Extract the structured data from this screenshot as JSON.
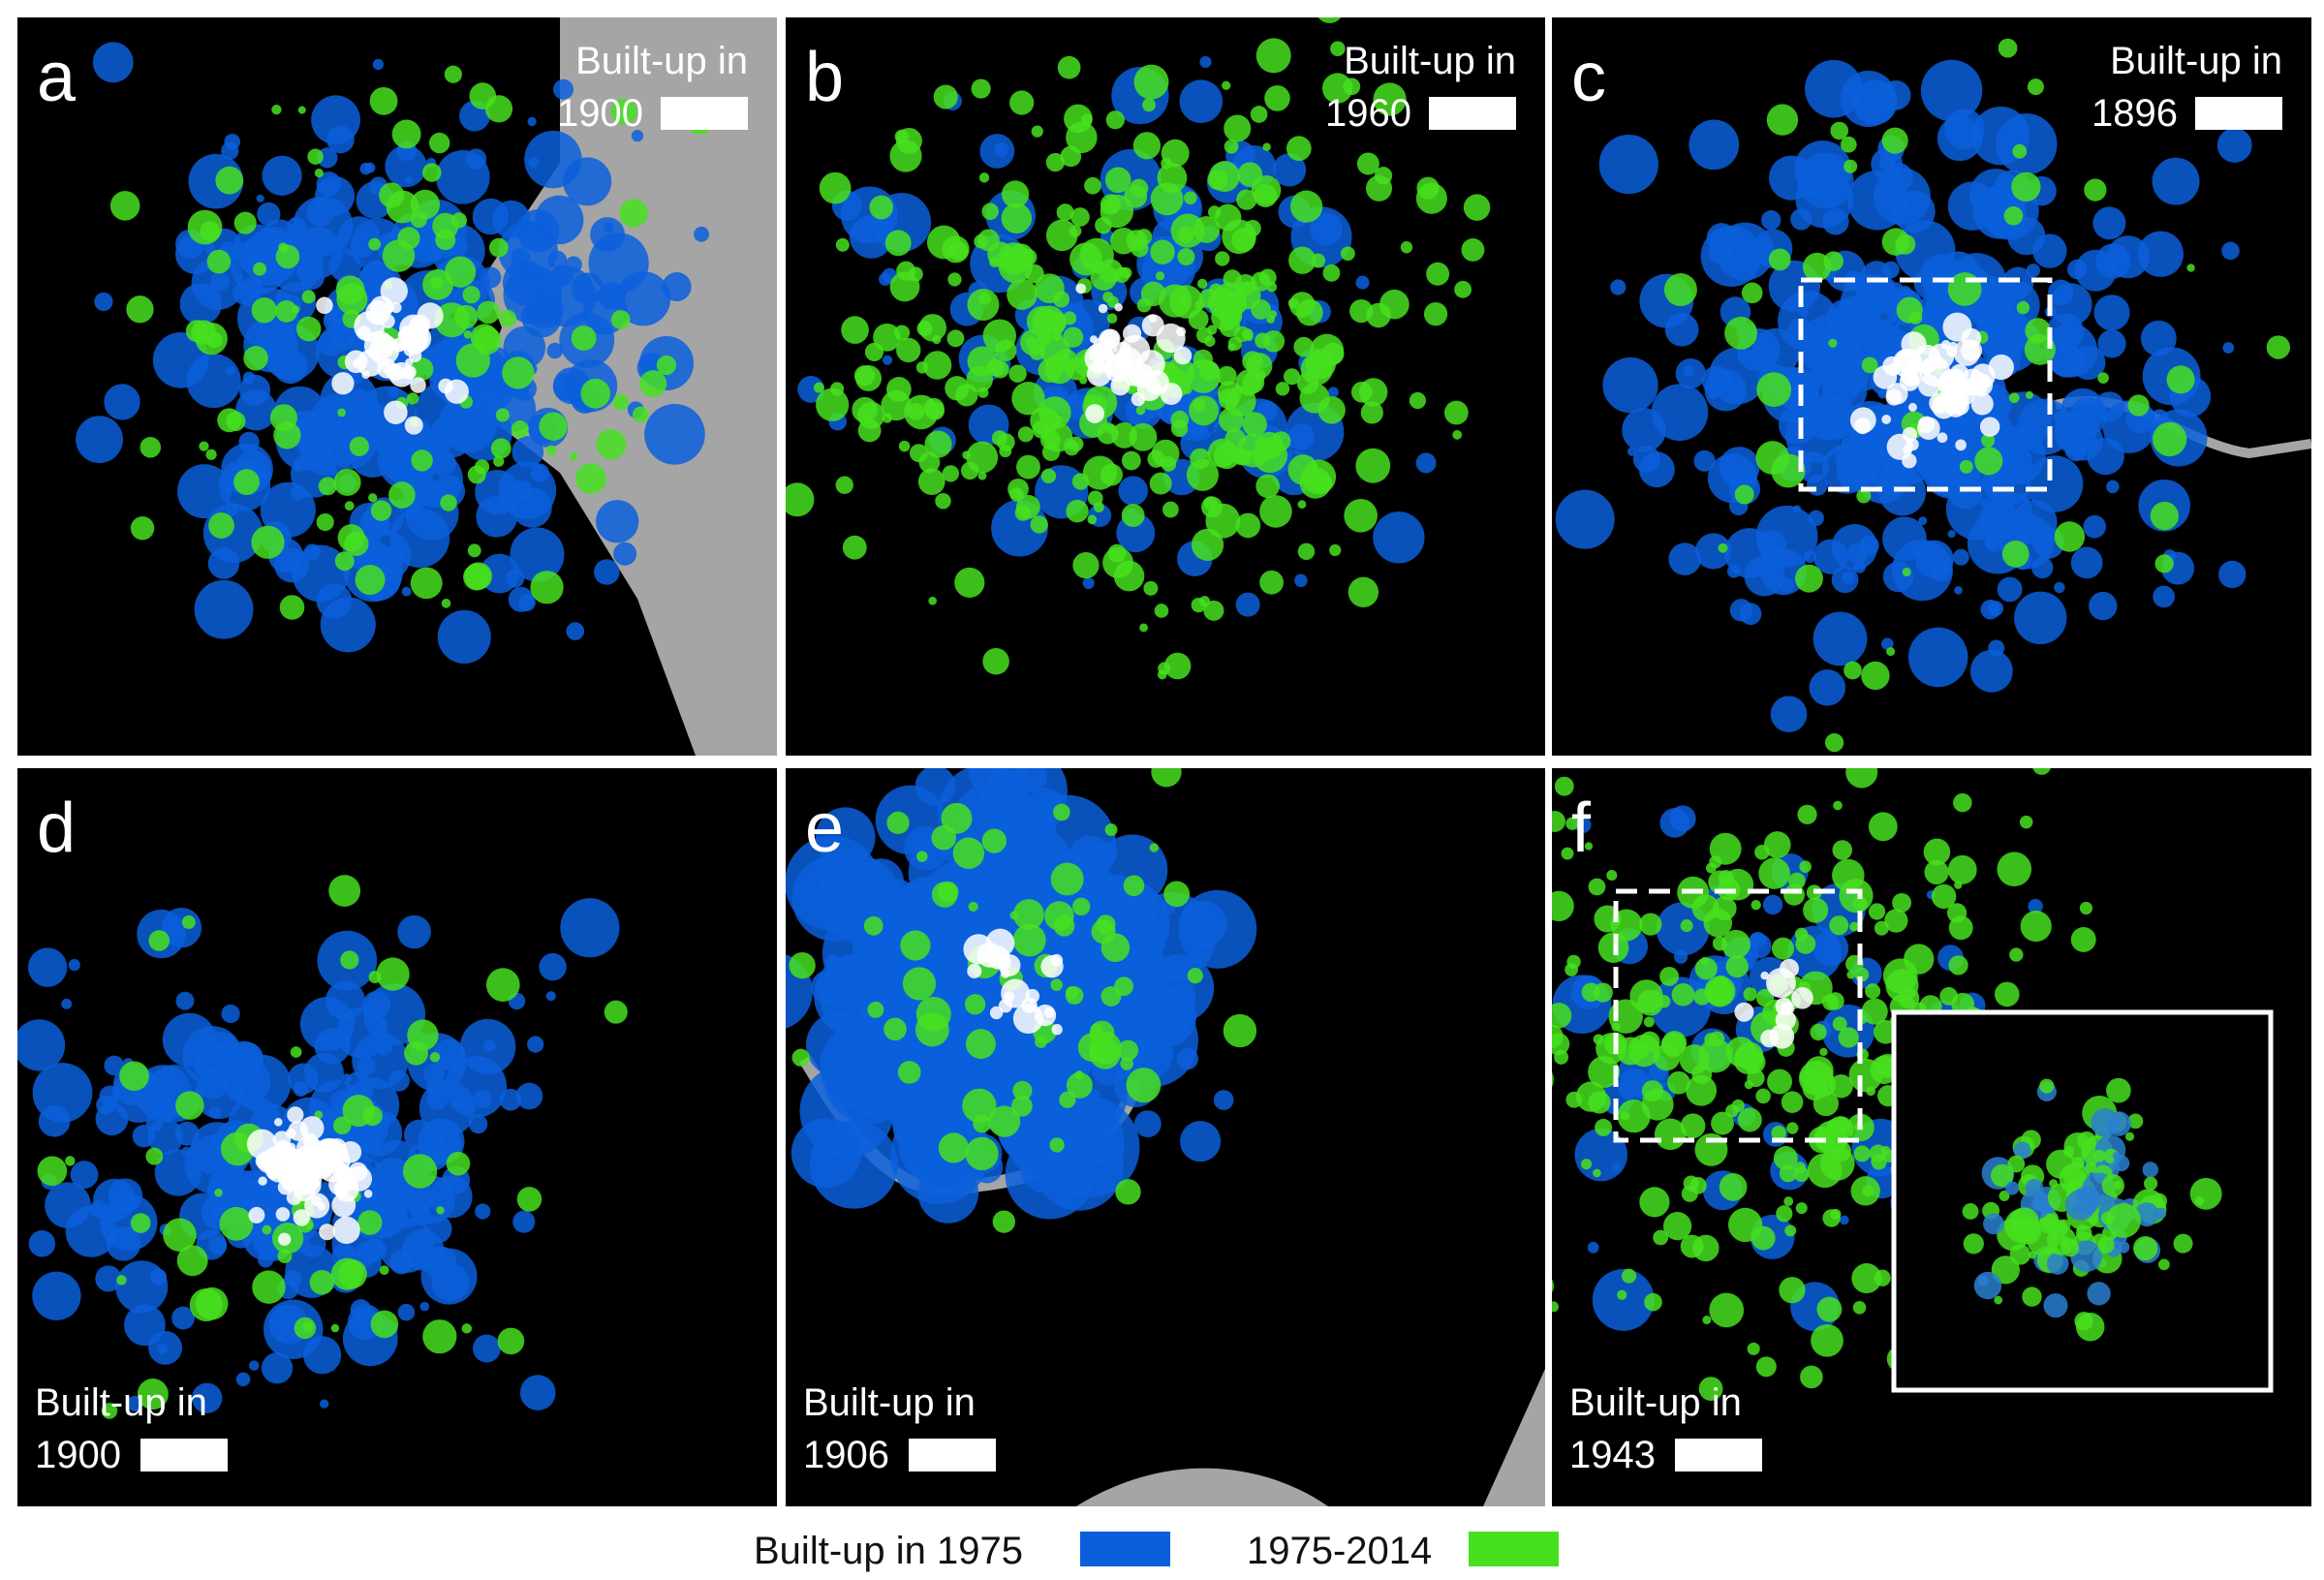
{
  "panels": [
    {
      "letter": "a",
      "label": "Built-up in",
      "year": "1900"
    },
    {
      "letter": "b",
      "label": "Built-up in",
      "year": "1960"
    },
    {
      "letter": "c",
      "label": "Built-up in",
      "year": "1896"
    },
    {
      "letter": "d",
      "label": "Built-up in",
      "year": "1900"
    },
    {
      "letter": "e",
      "label": "Built-up in",
      "year": "1906"
    },
    {
      "letter": "f",
      "label": "Built-up in",
      "year": "1943"
    }
  ],
  "legend": [
    {
      "label": "Built-up in 1975",
      "color": "#0b5fdc"
    },
    {
      "label": "1975-2014",
      "color": "#47e01e"
    }
  ]
}
